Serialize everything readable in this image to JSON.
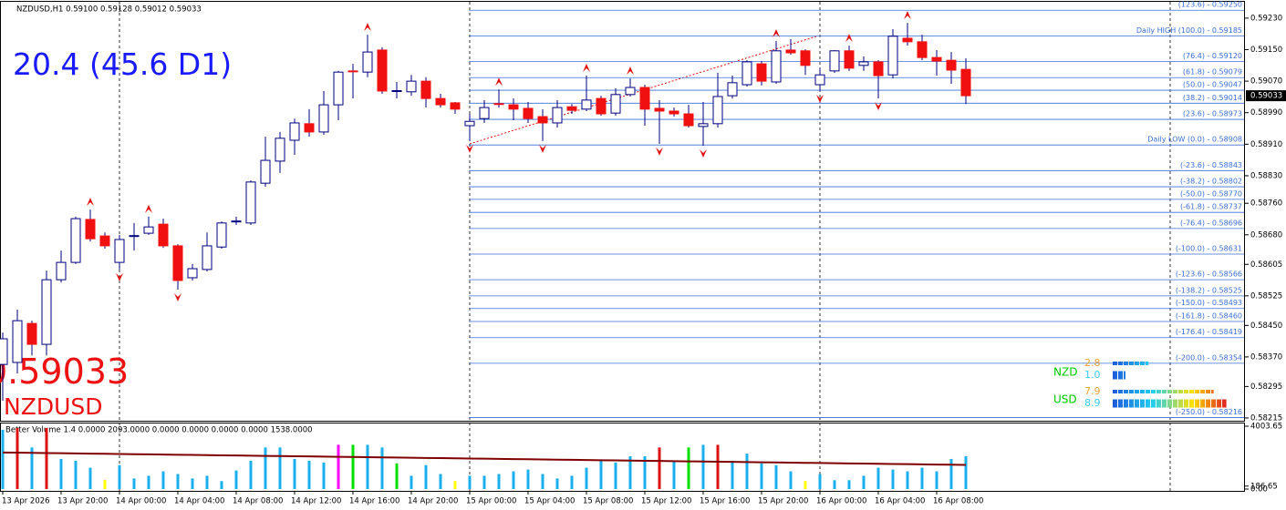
{
  "chart_data": [
    {
      "type": "candlestick",
      "title": "NZDUSD,H1  0.59100 0.59128 0.59012 0.59033",
      "symbol": "NZDUSD",
      "indicator_text": "20.4 (45.6 D1)",
      "categories": [
        "13 Apr 2026",
        null,
        null,
        null,
        "13 Apr 20:00",
        null,
        null,
        null,
        "14 Apr 00:00",
        null,
        null,
        null,
        "14 Apr 04:00",
        null,
        null,
        null,
        "14 Apr 08:00",
        null,
        null,
        null,
        "14 Apr 12:00",
        null,
        null,
        null,
        "14 Apr 16:00",
        null,
        null,
        null,
        "14 Apr 20:00",
        null,
        null,
        null,
        "15 Apr 00:00",
        null,
        null,
        null,
        "15 Apr 04:00",
        null,
        null,
        null,
        "15 Apr 08:00",
        null,
        null,
        null,
        "15 Apr 12:00",
        null,
        null,
        null,
        "15 Apr 16:00",
        null,
        null,
        null,
        "15 Apr 20:00",
        null,
        null,
        null,
        "16 Apr 00:00",
        null,
        null,
        null,
        "16 Apr 04:00",
        null,
        null,
        null,
        "16 Apr 08:00",
        null,
        null
      ],
      "ohlc": [
        [
          0.58351,
          0.58432,
          0.58259,
          0.58416
        ],
        [
          0.58356,
          0.5849,
          0.58328,
          0.58462
        ],
        [
          0.58455,
          0.58462,
          0.58374,
          0.58402
        ],
        [
          0.58402,
          0.58589,
          0.58374,
          0.58566
        ],
        [
          0.58566,
          0.5864,
          0.58559,
          0.5861
        ],
        [
          0.5861,
          0.58726,
          0.58606,
          0.58721
        ],
        [
          0.58719,
          0.58744,
          0.58663,
          0.5867
        ],
        [
          0.58677,
          0.58686,
          0.58645,
          0.58652
        ],
        [
          0.5861,
          0.5868,
          0.58592,
          0.58668
        ],
        [
          0.58677,
          0.5871,
          0.5864,
          0.58678
        ],
        [
          0.58684,
          0.58726,
          0.5868,
          0.587
        ],
        [
          0.58707,
          0.58721,
          0.58647,
          0.58652
        ],
        [
          0.58652,
          0.58656,
          0.58541,
          0.58564
        ],
        [
          0.58571,
          0.58606,
          0.58564,
          0.58594
        ],
        [
          0.58592,
          0.58686,
          0.58587,
          0.58652
        ],
        [
          0.58649,
          0.58714,
          0.58645,
          0.5871
        ],
        [
          0.58714,
          0.58726,
          0.58705,
          0.58715
        ],
        [
          0.5871,
          0.58818,
          0.58705,
          0.58814
        ],
        [
          0.58811,
          0.58929,
          0.58802,
          0.58869
        ],
        [
          0.58867,
          0.58941,
          0.58837,
          0.58925
        ],
        [
          0.5892,
          0.58975,
          0.58883,
          0.58964
        ],
        [
          0.58962,
          0.58999,
          0.58929,
          0.58941
        ],
        [
          0.58941,
          0.59045,
          0.58934,
          0.5901
        ],
        [
          0.5901,
          0.59096,
          0.58971,
          0.59093
        ],
        [
          0.59096,
          0.59114,
          0.59026,
          0.59095
        ],
        [
          0.59093,
          0.59188,
          0.5908,
          0.59144
        ],
        [
          0.59149,
          0.59156,
          0.59038,
          0.59045
        ],
        [
          0.59045,
          0.59068,
          0.59026,
          0.59046
        ],
        [
          0.59043,
          0.59086,
          0.59033,
          0.5907
        ],
        [
          0.5907,
          0.5908,
          0.59003,
          0.59026
        ],
        [
          0.59026,
          0.59038,
          0.59003,
          0.5901
        ],
        [
          0.59015,
          0.59017,
          0.58987,
          0.58999
        ],
        [
          0.58957,
          0.58987,
          0.58918,
          0.58968
        ],
        [
          0.58975,
          0.59022,
          0.58964,
          0.59003
        ],
        [
          0.59013,
          0.59049,
          0.59003,
          0.59012
        ],
        [
          0.5901,
          0.59026,
          0.58971,
          0.58999
        ],
        [
          0.59001,
          0.59017,
          0.58964,
          0.58975
        ],
        [
          0.5898,
          0.58999,
          0.58918,
          0.58964
        ],
        [
          0.58964,
          0.59022,
          0.58952,
          0.59003
        ],
        [
          0.59005,
          0.59012,
          0.58987,
          0.58996
        ],
        [
          0.58999,
          0.59084,
          0.58994,
          0.59022
        ],
        [
          0.59026,
          0.59033,
          0.58982,
          0.58987
        ],
        [
          0.58989,
          0.59052,
          0.58982,
          0.59036
        ],
        [
          0.59036,
          0.59077,
          0.59031,
          0.59054
        ],
        [
          0.59054,
          0.59061,
          0.58957,
          0.58999
        ],
        [
          0.59001,
          0.59022,
          0.58911,
          0.58994
        ],
        [
          0.58994,
          0.59003,
          0.5898,
          0.58987
        ],
        [
          0.58987,
          0.5901,
          0.58952,
          0.58957
        ],
        [
          0.58955,
          0.59017,
          0.58906,
          0.58962
        ],
        [
          0.58962,
          0.59091,
          0.58952,
          0.59031
        ],
        [
          0.59033,
          0.59084,
          0.59026,
          0.59066
        ],
        [
          0.59061,
          0.59123,
          0.59056,
          0.59119
        ],
        [
          0.59114,
          0.59121,
          0.59059,
          0.5907
        ],
        [
          0.59068,
          0.59172,
          0.59063,
          0.59147
        ],
        [
          0.59149,
          0.59177,
          0.59137,
          0.59142
        ],
        [
          0.59147,
          0.59151,
          0.59086,
          0.5911
        ],
        [
          0.59061,
          0.59103,
          0.59045,
          0.59086
        ],
        [
          0.59096,
          0.59149,
          0.59091,
          0.59147
        ],
        [
          0.59147,
          0.5916,
          0.59096,
          0.59103
        ],
        [
          0.5911,
          0.59133,
          0.59096,
          0.59119
        ],
        [
          0.59119,
          0.59123,
          0.59026,
          0.59084
        ],
        [
          0.59086,
          0.59202,
          0.59077,
          0.59184
        ],
        [
          0.59179,
          0.59218,
          0.5916,
          0.5917
        ],
        [
          0.5917,
          0.59188,
          0.59123,
          0.5913
        ],
        [
          0.5913,
          0.59149,
          0.59084,
          0.59121
        ],
        [
          0.59123,
          0.59144,
          0.59063,
          0.59098
        ],
        [
          0.591,
          0.59128,
          0.59012,
          0.59033
        ]
      ],
      "bull_color": "#ffffff",
      "bear_color": "#f01010",
      "wick_color": "#000080",
      "ylim": [
        0.58208,
        0.59276
      ],
      "yticks": [
        {
          "value": 0.5923,
          "label": "0.59230"
        },
        {
          "value": 0.5915,
          "label": "0.59150"
        },
        {
          "value": 0.5907,
          "label": "0.59070"
        },
        {
          "value": 0.5899,
          "label": "0.58990"
        },
        {
          "value": 0.5891,
          "label": "0.58910"
        },
        {
          "value": 0.5883,
          "label": "0.58830"
        },
        {
          "value": 0.5876,
          "label": "0.58760"
        },
        {
          "value": 0.5868,
          "label": "0.58680"
        },
        {
          "value": 0.58605,
          "label": "0.58605"
        },
        {
          "value": 0.58525,
          "label": "0.58525"
        },
        {
          "value": 0.5845,
          "label": "0.58450"
        },
        {
          "value": 0.5837,
          "label": "0.58370"
        },
        {
          "value": 0.58295,
          "label": "0.58295"
        },
        {
          "value": 0.58215,
          "label": "0.58215"
        }
      ],
      "current_price": {
        "value": 0.59033,
        "label": "0.59033"
      },
      "fib_color": "#3a6fd8",
      "fib_levels": [
        {
          "value": 0.5925,
          "label": "(123.6) - 0.59250"
        },
        {
          "value": 0.59185,
          "label": "Daily HIGH (100.0) - 0.59185"
        },
        {
          "value": 0.5912,
          "label": "(76.4) - 0.59120"
        },
        {
          "value": 0.59079,
          "label": "(61.8) - 0.59079"
        },
        {
          "value": 0.59047,
          "label": "(50.0) - 0.59047"
        },
        {
          "value": 0.59014,
          "label": "(38.2) - 0.59014"
        },
        {
          "value": 0.58973,
          "label": "(23.6) - 0.58973"
        },
        {
          "value": 0.58908,
          "label": "Daily LOW (0.0) - 0.58908"
        },
        {
          "value": 0.58843,
          "label": "(-23.6) - 0.58843"
        },
        {
          "value": 0.58802,
          "label": "(-38.2) - 0.58802"
        },
        {
          "value": 0.5877,
          "label": "(-50.0) - 0.58770"
        },
        {
          "value": 0.58737,
          "label": "(-61.8) - 0.58737"
        },
        {
          "value": 0.58696,
          "label": "(-76.4) - 0.58696"
        },
        {
          "value": 0.58631,
          "label": "(-100.0) - 0.58631"
        },
        {
          "value": 0.58566,
          "label": "(-123.6) - 0.58566"
        },
        {
          "value": 0.58525,
          "label": "(-138.2) - 0.58525"
        },
        {
          "value": 0.58493,
          "label": "(-150.0) - 0.58493"
        },
        {
          "value": 0.5846,
          "label": "(-161.8) - 0.58460"
        },
        {
          "value": 0.58419,
          "label": "(-176.4) - 0.58419"
        },
        {
          "value": 0.58354,
          "label": "(-200.0) - 0.58354"
        },
        {
          "value": 0.58216,
          "label": "(-250.0) - 0.58216"
        }
      ],
      "separators": [
        8,
        32,
        56,
        80
      ],
      "fractal_color": "#e01010",
      "fractals_up": [
        6,
        10,
        25,
        34,
        40,
        43,
        53,
        58,
        62
      ],
      "fractals_down": [
        8,
        12,
        32,
        37,
        45,
        48,
        56,
        60
      ],
      "strength": [
        {
          "name": "NZD",
          "values": [
            2.8,
            1
          ],
          "value_labels": [
            "2.8",
            "1.0"
          ]
        },
        {
          "name": "USD",
          "values": [
            7.9,
            8.9
          ],
          "value_labels": [
            "7.9",
            "8.9"
          ]
        }
      ]
    },
    {
      "type": "bar",
      "title": "Better Volume 1.4 0.0000 2093.0000 0.0000 0.0000 0.0000 0.0000 1538.0000",
      "values": [
        3779,
        3892,
        2651,
        3892,
        1918,
        1805,
        1354,
        564,
        1523,
        677,
        846,
        1128,
        959,
        677,
        846,
        508,
        1184,
        1805,
        2651,
        2651,
        1918,
        1805,
        1692,
        2820,
        2820,
        2820,
        2651,
        1636,
        846,
        1523,
        959,
        508,
        846,
        846,
        959,
        1128,
        1241,
        959,
        677,
        846,
        1354,
        1805,
        1692,
        2087,
        2087,
        2651,
        1805,
        2651,
        2820,
        2820,
        1805,
        2256,
        1636,
        1523,
        1128,
        508,
        959,
        564,
        564,
        846,
        1354,
        1241,
        1128,
        1354,
        1128,
        1918,
        2093
      ],
      "colors": [
        "#1ab0ec",
        "#e01010",
        "#1ab0ec",
        "#e01010",
        "#1ab0ec",
        "#1ab0ec",
        "#1ab0ec",
        "#ffff00",
        "#1ab0ec",
        "#1ab0ec",
        "#1ab0ec",
        "#1ab0ec",
        "#1ab0ec",
        "#1ab0ec",
        "#1ab0ec",
        "#1ab0ec",
        "#1ab0ec",
        "#1ab0ec",
        "#1ab0ec",
        "#1ab0ec",
        "#1ab0ec",
        "#1ab0ec",
        "#1ab0ec",
        "#ff00ff",
        "#00e000",
        "#1ab0ec",
        "#1ab0ec",
        "#00e000",
        "#1ab0ec",
        "#1ab0ec",
        "#1ab0ec",
        "#ffff00",
        "#1ab0ec",
        "#1ab0ec",
        "#1ab0ec",
        "#1ab0ec",
        "#1ab0ec",
        "#1ab0ec",
        "#1ab0ec",
        "#1ab0ec",
        "#1ab0ec",
        "#1ab0ec",
        "#1ab0ec",
        "#1ab0ec",
        "#1ab0ec",
        "#e01010",
        "#1ab0ec",
        "#00e000",
        "#1ab0ec",
        "#e01010",
        "#1ab0ec",
        "#1ab0ec",
        "#1ab0ec",
        "#1ab0ec",
        "#1ab0ec",
        "#ffff00",
        "#1ab0ec",
        "#1ab0ec",
        "#1ab0ec",
        "#1ab0ec",
        "#1ab0ec",
        "#1ab0ec",
        "#1ab0ec",
        "#1ab0ec",
        "#1ab0ec",
        "#1ab0ec",
        "#1ab0ec"
      ],
      "average": {
        "color": "#800000",
        "values": [
          2330,
          2318,
          2306,
          2294,
          2282,
          2270,
          2258,
          2246,
          2234,
          2222,
          2210,
          2198,
          2186,
          2174,
          2162,
          2150,
          2138,
          2126,
          2114,
          2102,
          2090,
          2078,
          2066,
          2054,
          2042,
          2030,
          2018,
          2006,
          1994,
          1982,
          1970,
          1958,
          1946,
          1934,
          1922,
          1910,
          1898,
          1886,
          1874,
          1862,
          1850,
          1838,
          1826,
          1814,
          1802,
          1790,
          1778,
          1766,
          1754,
          1742,
          1730,
          1718,
          1706,
          1694,
          1682,
          1670,
          1658,
          1646,
          1634,
          1622,
          1610,
          1598,
          1586,
          1574,
          1562,
          1550,
          1538
        ]
      },
      "ylim": [
        0,
        4003.65
      ],
      "yticks": [
        4003.65,
        186.65,
        {
          "value": 0,
          "label": "0.00"
        }
      ]
    }
  ]
}
